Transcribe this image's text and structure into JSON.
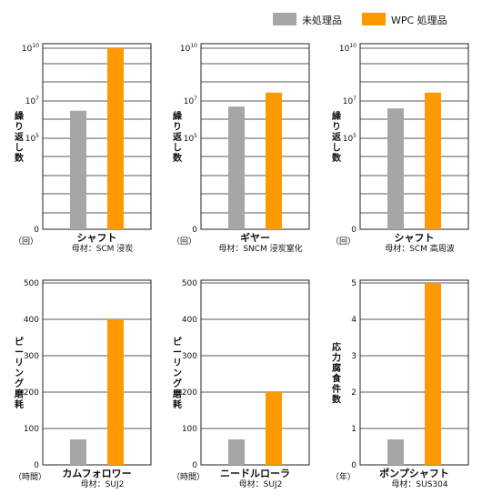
{
  "legend": [
    {
      "name": "未処理品",
      "color": "#a6a6a6"
    },
    {
      "name": "WPC 処理品",
      "color": "#ff9900"
    }
  ],
  "chart_data": [
    {
      "type": "bar",
      "ylabel": "繰り返し数",
      "unit": "（回）",
      "yscale": "log",
      "yticks": [
        {
          "base": "10",
          "exp": "10"
        },
        {
          "base": "10",
          "exp": "7"
        },
        {
          "base": "10",
          "exp": "5"
        },
        {
          "base": "0",
          "exp": ""
        }
      ],
      "category": "シャフト",
      "subtitle": "母材：SCM 浸炭",
      "series": [
        {
          "name": "未処理品",
          "values": [
            3000000
          ]
        },
        {
          "name": "WPC 処理品",
          "values": [
            10000000000
          ]
        }
      ],
      "grid": true
    },
    {
      "type": "bar",
      "ylabel": "繰り返し数",
      "unit": "（回）",
      "yscale": "log",
      "yticks": [
        {
          "base": "10",
          "exp": "10"
        },
        {
          "base": "10",
          "exp": "7"
        },
        {
          "base": "10",
          "exp": "5"
        },
        {
          "base": "0",
          "exp": ""
        }
      ],
      "category": "ギヤー",
      "subtitle": "母材：SNCM 浸炭窒化",
      "series": [
        {
          "name": "未処理品",
          "values": [
            5000000
          ]
        },
        {
          "name": "WPC 処理品",
          "values": [
            30000000
          ]
        }
      ],
      "grid": true
    },
    {
      "type": "bar",
      "ylabel": "繰り返し数",
      "unit": "（回）",
      "yscale": "log",
      "yticks": [
        {
          "base": "10",
          "exp": "10"
        },
        {
          "base": "10",
          "exp": "7"
        },
        {
          "base": "10",
          "exp": "5"
        },
        {
          "base": "0",
          "exp": ""
        }
      ],
      "category": "シャフト",
      "subtitle": "母材：SCM 高周波",
      "series": [
        {
          "name": "未処理品",
          "values": [
            4000000
          ]
        },
        {
          "name": "WPC 処理品",
          "values": [
            30000000
          ]
        }
      ],
      "grid": true
    },
    {
      "type": "bar",
      "ylabel": "ピーリング磨耗",
      "unit": "（時間）",
      "ylim": [
        0,
        500
      ],
      "yticks": [
        {
          "base": "500"
        },
        {
          "base": "400"
        },
        {
          "base": "300"
        },
        {
          "base": "200"
        },
        {
          "base": "100"
        },
        {
          "base": "0"
        }
      ],
      "category": "カムフォロワー",
      "subtitle": "母材：SUJ2",
      "series": [
        {
          "name": "未処理品",
          "values": [
            70
          ]
        },
        {
          "name": "WPC 処理品",
          "values": [
            400
          ]
        }
      ],
      "grid": true
    },
    {
      "type": "bar",
      "ylabel": "ピーリング磨耗",
      "unit": "（時間）",
      "ylim": [
        0,
        500
      ],
      "yticks": [
        {
          "base": "500"
        },
        {
          "base": "400"
        },
        {
          "base": "300"
        },
        {
          "base": "200"
        },
        {
          "base": "100"
        },
        {
          "base": "0"
        }
      ],
      "category": "ニードルローラ",
      "subtitle": "母材：SUJ2",
      "series": [
        {
          "name": "未処理品",
          "values": [
            70
          ]
        },
        {
          "name": "WPC 処理品",
          "values": [
            200
          ]
        }
      ],
      "grid": true
    },
    {
      "type": "bar",
      "ylabel": "応力腐食件数",
      "unit": "（年）",
      "ylim": [
        0,
        5
      ],
      "yticks": [
        {
          "base": "5"
        },
        {
          "base": "4"
        },
        {
          "base": "3"
        },
        {
          "base": "2"
        },
        {
          "base": "1"
        },
        {
          "base": "0"
        }
      ],
      "category": "ポンプシャフト",
      "subtitle": "母材：SUS304",
      "series": [
        {
          "name": "未処理品",
          "values": [
            0.7
          ]
        },
        {
          "name": "WPC 処理品",
          "values": [
            5
          ]
        }
      ],
      "grid": true
    }
  ]
}
